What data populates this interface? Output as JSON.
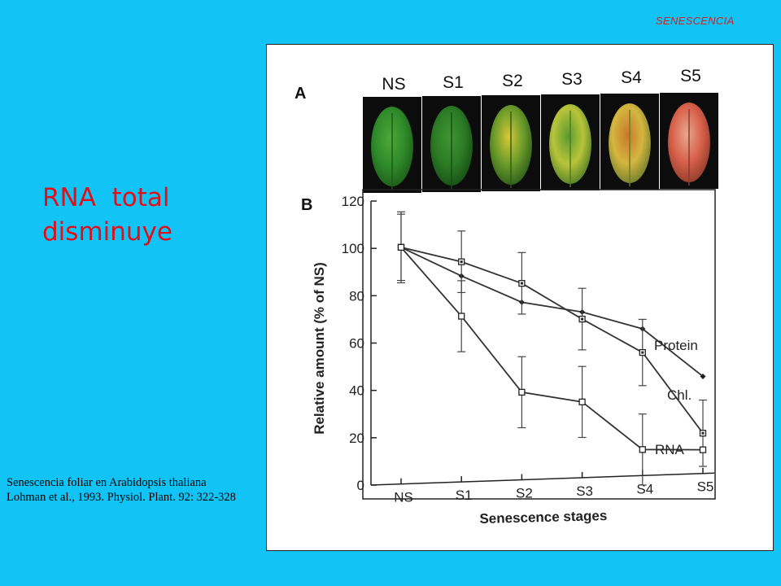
{
  "header": {
    "label": "SENESCENCIA"
  },
  "headline": {
    "line1": "RNA  total",
    "line2": "disminuye"
  },
  "caption": {
    "line1": "Senescencia foliar en  Arabidopsis thaliana",
    "line2": "Lohman et al., 1993. Physiol. Plant. 92: 322-328"
  },
  "panel_a": {
    "label": "A",
    "stages": [
      "NS",
      "S1",
      "S2",
      "S3",
      "S4",
      "S5"
    ],
    "leaf_colors": [
      {
        "base": "#2f8a2a",
        "edge": "#1c5a18",
        "spot": "#4fa838"
      },
      {
        "base": "#2b7a24",
        "edge": "#174d14",
        "spot": "#3f9632"
      },
      {
        "base": "#6a9a2a",
        "edge": "#2a5a18",
        "spot": "#d8c838"
      },
      {
        "base": "#b8c43a",
        "edge": "#4a7a24",
        "spot": "#5a9a30"
      },
      {
        "base": "#d4b640",
        "edge": "#6a7a2a",
        "spot": "#c8782a"
      },
      {
        "base": "#d8604a",
        "edge": "#8a3a2a",
        "spot": "#e8a890"
      }
    ]
  },
  "chart_data": {
    "type": "line",
    "panel_label": "B",
    "categories": [
      "NS",
      "S1",
      "S2",
      "S3",
      "S4",
      "S5"
    ],
    "xlabel": "Senescence stages",
    "ylabel": "Relative amount (% of NS)",
    "ylim": [
      0,
      120
    ],
    "yticks": [
      0,
      20,
      40,
      60,
      80,
      100,
      120
    ],
    "grid": false,
    "series": [
      {
        "name": "Protein",
        "marker": "diamond",
        "values": [
          100,
          87,
          75,
          70,
          62,
          41
        ],
        "errors": [
          null,
          null,
          null,
          null,
          null,
          null
        ]
      },
      {
        "name": "Chl.",
        "marker": "square-dot",
        "values": [
          100,
          93,
          83,
          67,
          52,
          17
        ],
        "errors": [
          14,
          13,
          13,
          13,
          14,
          14
        ]
      },
      {
        "name": "RNA",
        "marker": "square",
        "values": [
          100,
          70,
          37,
          32,
          11,
          10
        ],
        "errors": [
          15,
          15,
          15,
          15,
          15,
          0
        ]
      }
    ]
  }
}
